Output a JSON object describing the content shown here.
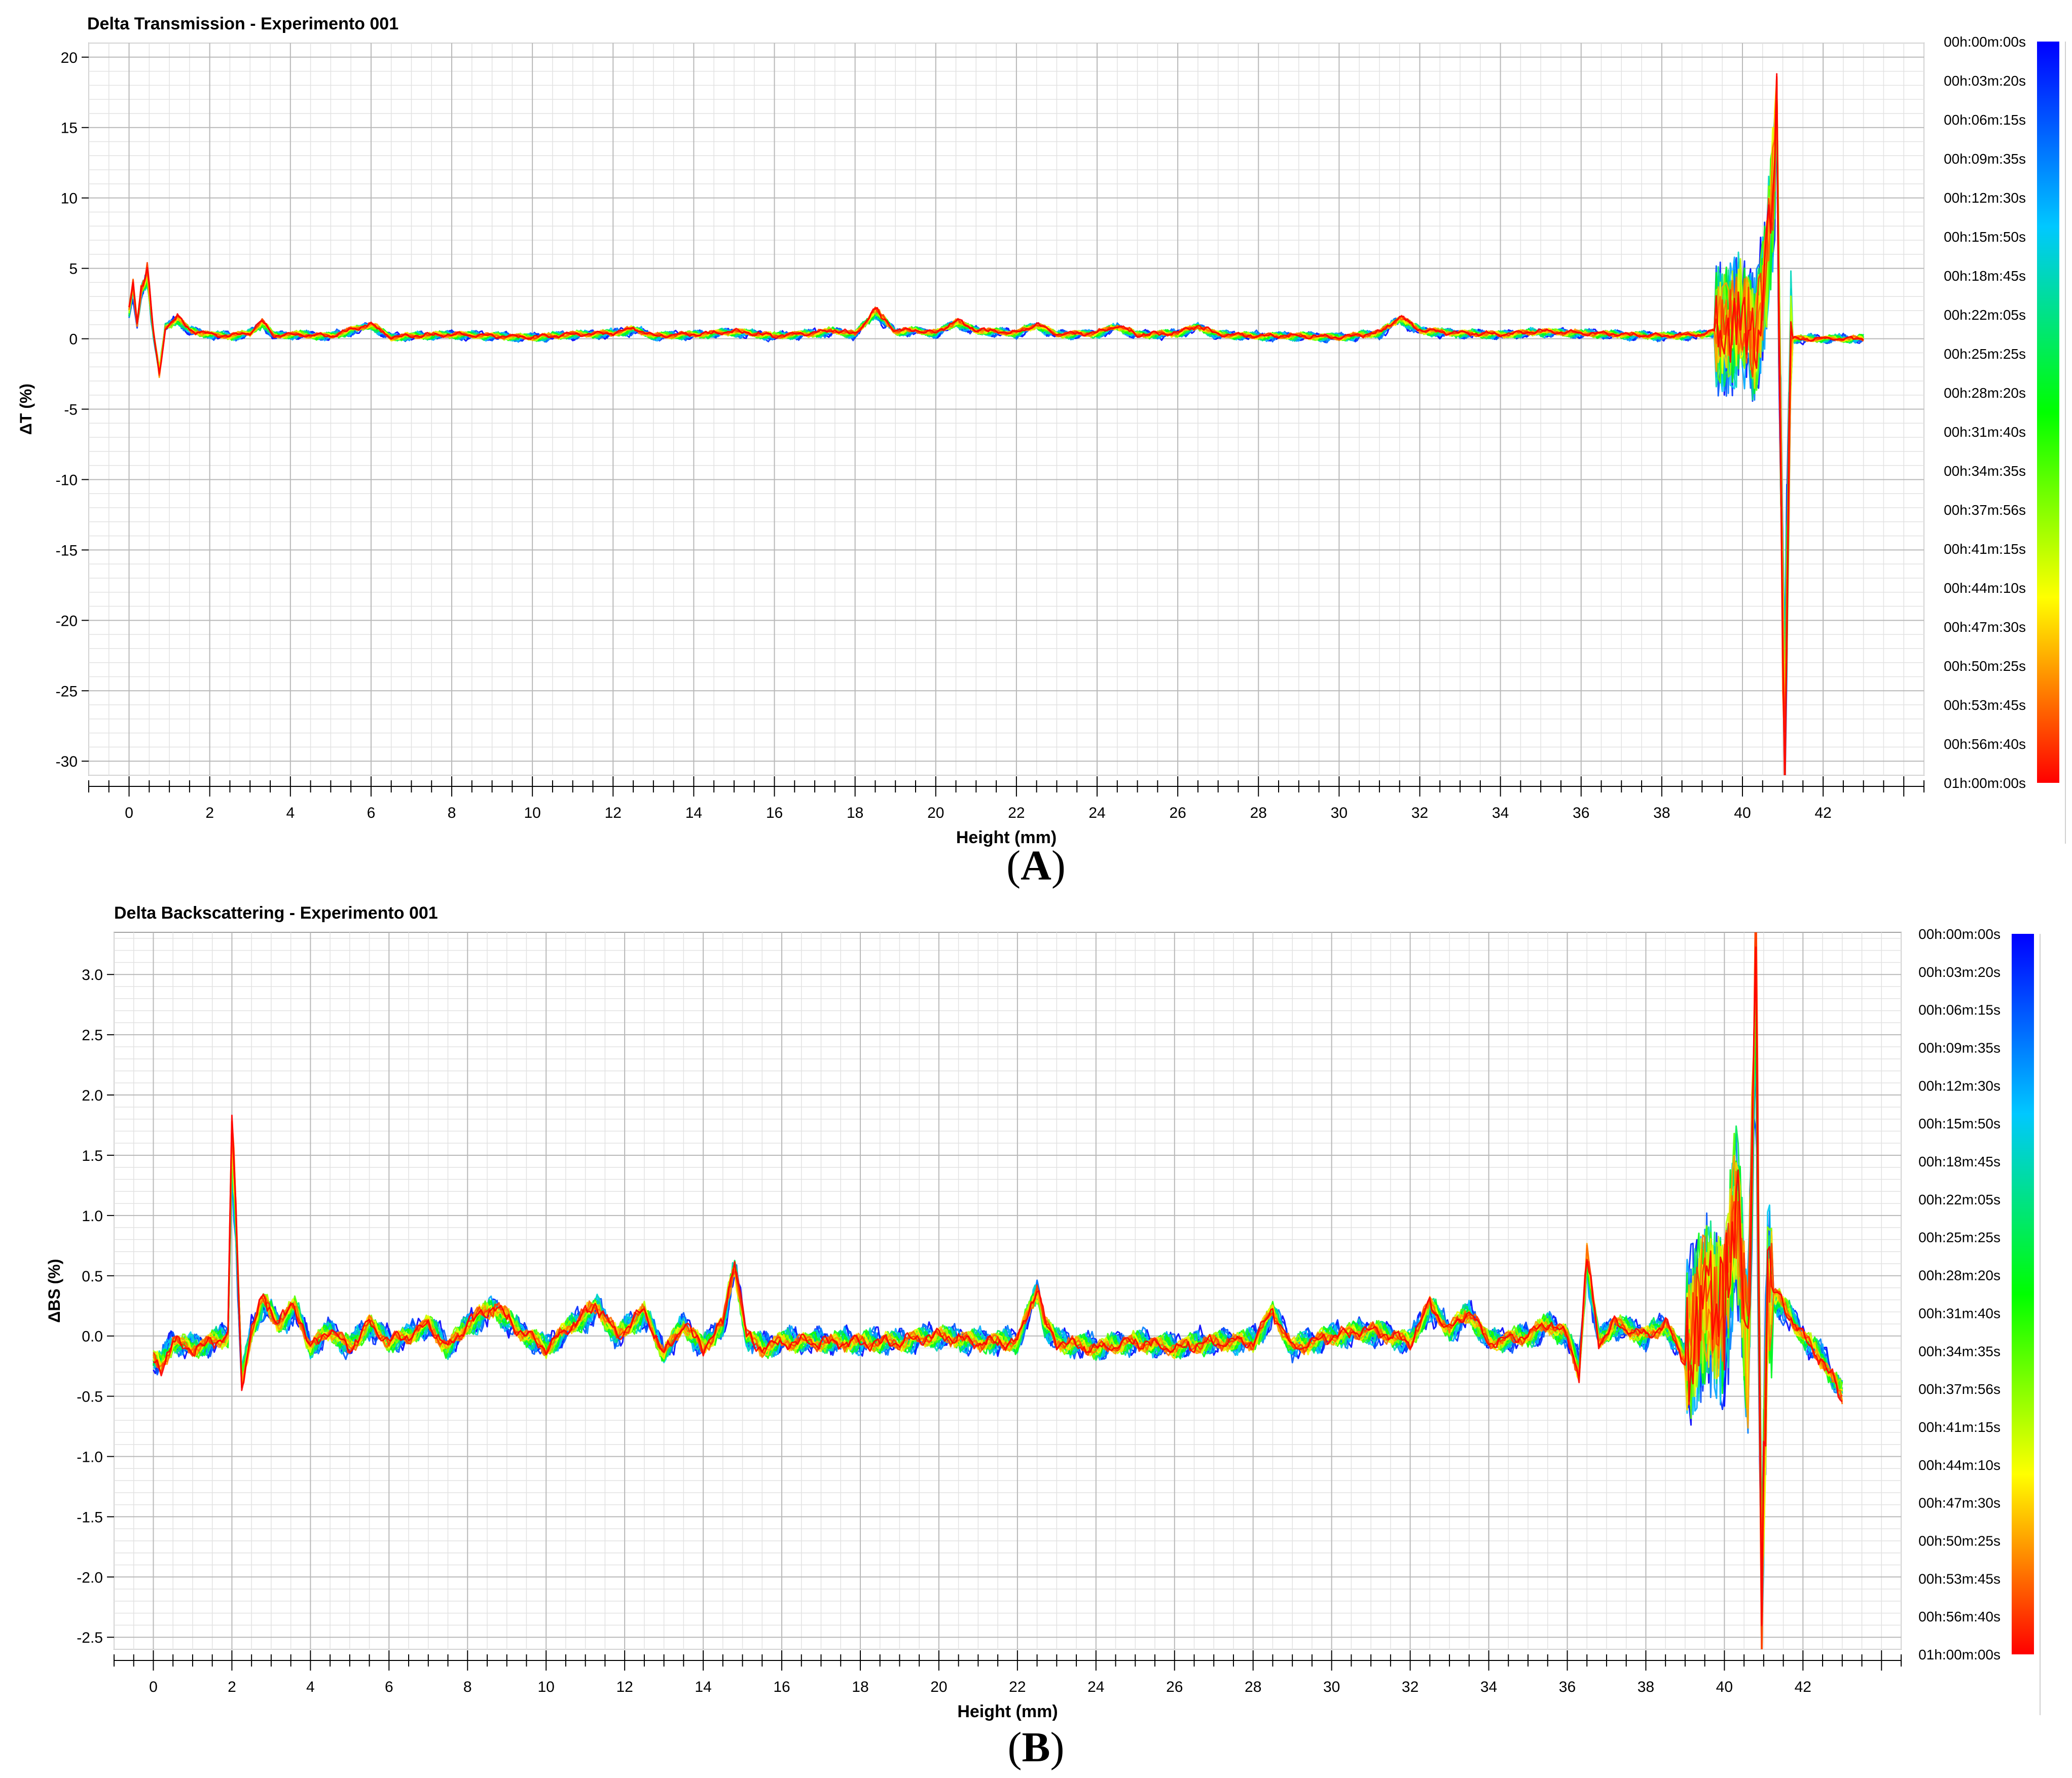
{
  "figure": {
    "captionA": "A",
    "captionB": "B"
  },
  "chart_data": [
    {
      "type": "line",
      "title": "Delta Transmission - Experimento 001",
      "xlabel": "Height (mm)",
      "ylabel": "ΔT (%)",
      "xlim": [
        -1,
        44.5
      ],
      "ylim": [
        -31,
        21
      ],
      "xticks": [
        0,
        2,
        4,
        6,
        8,
        10,
        12,
        14,
        16,
        18,
        20,
        22,
        24,
        26,
        28,
        30,
        32,
        34,
        36,
        38,
        40,
        42
      ],
      "yticks": [
        20,
        15,
        10,
        5,
        0,
        -5,
        -10,
        -15,
        -20,
        -25,
        -30
      ],
      "grid": true,
      "legend": "right colorbar (time scale)",
      "colorbar_labels": [
        "00h:00m:00s",
        "00h:03m:20s",
        "00h:06m:15s",
        "00h:09m:35s",
        "00h:12m:30s",
        "00h:15m:50s",
        "00h:18m:45s",
        "00h:22m:05s",
        "00h:25m:25s",
        "00h:28m:20s",
        "00h:31m:40s",
        "00h:34m:35s",
        "00h:37m:56s",
        "00h:41m:15s",
        "00h:44m:10s",
        "00h:47m:30s",
        "00h:50m:25s",
        "00h:53m:45s",
        "00h:56m:40s",
        "01h:00m:00s"
      ],
      "colorbar_colors": [
        "#0000ff",
        "#00c8ff",
        "#00ff00",
        "#ffff00",
        "#ff0000"
      ],
      "series_count": 20,
      "profile": {
        "x": [
          0,
          0.1,
          0.2,
          0.3,
          0.45,
          0.6,
          0.75,
          0.9,
          1.2,
          1.5,
          2,
          2.5,
          3,
          3.3,
          3.6,
          4,
          5,
          6,
          6.5,
          7,
          8,
          9,
          10,
          11,
          12,
          12.5,
          13,
          14,
          15,
          16,
          17,
          17.5,
          18,
          18.5,
          19,
          19.5,
          20,
          20.5,
          21,
          21.5,
          22,
          22.5,
          23,
          24,
          24.5,
          25,
          26,
          26.5,
          27,
          28,
          29,
          30,
          31,
          31.5,
          32,
          33,
          34,
          35,
          36,
          37,
          38,
          39,
          39.5,
          40,
          40.3,
          40.6,
          40.85,
          41,
          41.05,
          41.2,
          42,
          43
        ],
        "y": [
          2,
          3.8,
          1,
          3.5,
          4.8,
          0.5,
          -2.5,
          0.8,
          1.5,
          0.6,
          0.3,
          0.2,
          0.4,
          1.2,
          0.2,
          0.3,
          0.2,
          1,
          0.1,
          0.2,
          0.3,
          0.2,
          0.1,
          0.3,
          0.4,
          0.7,
          0.2,
          0.3,
          0.5,
          0.2,
          0.4,
          0.6,
          0.3,
          2,
          0.5,
          0.6,
          0.4,
          1.2,
          0.6,
          0.5,
          0.4,
          1,
          0.3,
          0.4,
          0.9,
          0.3,
          0.4,
          0.9,
          0.3,
          0.2,
          0.2,
          0.1,
          0.4,
          1.5,
          0.6,
          0.4,
          0.3,
          0.5,
          0.4,
          0.3,
          0.2,
          0.3,
          0.7,
          2,
          -0.5,
          5,
          15,
          -20,
          -29,
          0,
          0,
          0
        ]
      }
    },
    {
      "type": "line",
      "title": "Delta Backscattering - Experimento 001",
      "xlabel": "Height (mm)",
      "ylabel": "ΔBS (%)",
      "xlim": [
        -1,
        44.5
      ],
      "ylim": [
        -2.6,
        3.35
      ],
      "xticks": [
        0,
        2,
        4,
        6,
        8,
        10,
        12,
        14,
        16,
        18,
        20,
        22,
        24,
        26,
        28,
        30,
        32,
        34,
        36,
        38,
        40,
        42
      ],
      "yticks": [
        3.0,
        2.5,
        2.0,
        1.5,
        1.0,
        0.5,
        0.0,
        -0.5,
        -1.0,
        -1.5,
        -2.0,
        -2.5
      ],
      "yticklabels": [
        "3.0",
        "2.5",
        "2.0",
        "1.5",
        "1.0",
        "0.5",
        "0.0",
        "-0.5",
        "-1.0",
        "-1.5",
        "-2.0",
        "-2.5"
      ],
      "grid": true,
      "legend": "right colorbar (time scale)",
      "colorbar_labels": [
        "00h:00m:00s",
        "00h:03m:20s",
        "00h:06m:15s",
        "00h:09m:35s",
        "00h:12m:30s",
        "00h:15m:50s",
        "00h:18m:45s",
        "00h:22m:05s",
        "00h:25m:25s",
        "00h:28m:20s",
        "00h:31m:40s",
        "00h:34m:35s",
        "00h:37m:56s",
        "00h:41m:15s",
        "00h:44m:10s",
        "00h:47m:30s",
        "00h:50m:25s",
        "00h:53m:45s",
        "00h:56m:40s",
        "01h:00m:00s"
      ],
      "colorbar_colors": [
        "#0000ff",
        "#00c8ff",
        "#00ff00",
        "#ffff00",
        "#ff0000"
      ],
      "series_count": 20,
      "profile": {
        "x": [
          0,
          0.2,
          0.5,
          1,
          1.5,
          1.9,
          2.0,
          2.1,
          2.25,
          2.5,
          2.8,
          3.2,
          3.6,
          4,
          4.5,
          5,
          5.5,
          6,
          6.5,
          7,
          7.5,
          8,
          8.7,
          9.3,
          10,
          10.7,
          11.3,
          11.8,
          12.5,
          13,
          13.5,
          14,
          14.5,
          14.8,
          15.1,
          15.5,
          16,
          17,
          18,
          19,
          20,
          21,
          22,
          22.5,
          22.7,
          23,
          24,
          25,
          26,
          27,
          28,
          28.5,
          29,
          30,
          31,
          32,
          32.5,
          33,
          33.5,
          34,
          35,
          35.5,
          36,
          36.3,
          36.5,
          36.8,
          37.2,
          38,
          38.5,
          39,
          39.5,
          40,
          40.3,
          40.6,
          40.8,
          40.95,
          41.1,
          41.4,
          42,
          42.5,
          43
        ],
        "y": [
          -0.2,
          -0.25,
          -0.05,
          -0.1,
          -0.05,
          0,
          1.7,
          1.0,
          -0.4,
          0.05,
          0.3,
          0.1,
          0.25,
          -0.1,
          0.05,
          -0.1,
          0.1,
          -0.05,
          0,
          0.1,
          -0.1,
          0.1,
          0.25,
          0.05,
          -0.1,
          0.1,
          0.25,
          0,
          0.2,
          -0.15,
          0.1,
          -0.1,
          0.1,
          0.6,
          0,
          -0.1,
          -0.05,
          -0.05,
          -0.05,
          -0.05,
          0,
          -0.05,
          -0.05,
          0.4,
          0.1,
          -0.05,
          -0.1,
          -0.05,
          -0.1,
          -0.05,
          -0.05,
          0.2,
          -0.1,
          0,
          0.05,
          -0.05,
          0.25,
          0.05,
          0.2,
          -0.05,
          0,
          0.1,
          0,
          -0.3,
          0.65,
          -0.05,
          0.1,
          0,
          0.1,
          -0.2,
          0.3,
          0.2,
          1.2,
          -0.2,
          3.2,
          -2.2,
          0.4,
          0.3,
          0,
          -0.2,
          -0.5
        ]
      }
    }
  ]
}
